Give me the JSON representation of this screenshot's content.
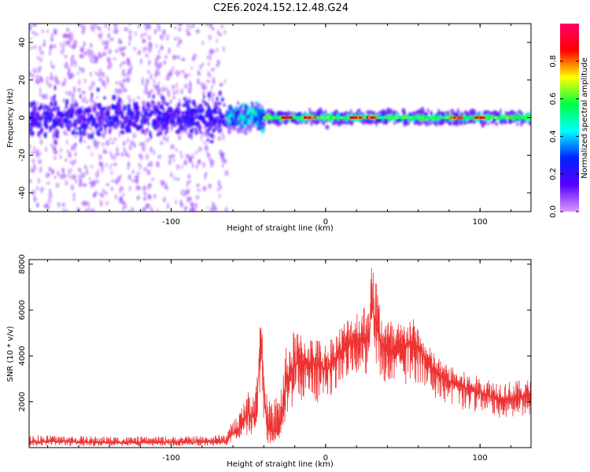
{
  "title": "C2E6.2024.152.12.48.G24",
  "colors": {
    "snr_line": "#ee3333",
    "frame": "#000000",
    "background": "#ffffff"
  },
  "colorbar": {
    "label": "Normalized spectral amplitude",
    "range": [
      0,
      1
    ],
    "ticks": [
      "0.0",
      "0.2",
      "0.4",
      "0.6",
      "0.8"
    ],
    "tick_values": [
      0.0,
      0.2,
      0.4,
      0.6,
      0.8
    ],
    "colormap": "gist_rainbow_r",
    "colormap_stops": [
      "#dd99ff",
      "#5500ff",
      "#0022ff",
      "#00ffff",
      "#00ff44",
      "#ffff00",
      "#ff0000",
      "#ff0066"
    ]
  },
  "chart_data": [
    {
      "type": "heatmap",
      "title": "C2E6.2024.152.12.48.G24",
      "xlabel": "Height of straight line (km)",
      "ylabel": "Frequency (Hz)",
      "xlim": [
        -192,
        133
      ],
      "ylim": [
        -50,
        50
      ],
      "x_ticks": [
        -100,
        0,
        100
      ],
      "x_tick_labels": [
        "-100",
        "0",
        "100"
      ],
      "y_ticks": [
        -40,
        -20,
        0,
        20,
        40
      ],
      "y_tick_labels": [
        "-40",
        "-20",
        "0",
        "20",
        "40"
      ],
      "grid": false,
      "regions": [
        {
          "x_range": [
            -192,
            -64
          ],
          "freq_spread_hz": 50,
          "core_band_hz": [
            -8,
            8
          ],
          "amplitude": "low (0.1–0.3)"
        },
        {
          "x_range": [
            -64,
            -40
          ],
          "freq_spread_hz": 8,
          "core_band_hz": [
            -4,
            4
          ],
          "amplitude": "medium (0.3–0.6)"
        },
        {
          "x_range": [
            -40,
            133
          ],
          "freq_spread_hz": 4,
          "core_band_hz": [
            -2,
            2
          ],
          "amplitude": "high (0.6–1.0) near 0 Hz"
        }
      ],
      "peak_locations_x": [
        -25,
        -10,
        20,
        30,
        85,
        100
      ]
    },
    {
      "type": "line",
      "xlabel": "Height of straight line (km)",
      "ylabel": "SNR (10 * v/v)",
      "xlim": [
        -192,
        133
      ],
      "ylim": [
        0,
        8200
      ],
      "x_ticks": [
        -100,
        0,
        100
      ],
      "x_tick_labels": [
        "-100",
        "0",
        "100"
      ],
      "y_ticks": [
        2000,
        4000,
        6000,
        8000
      ],
      "y_tick_labels": [
        "2000",
        "4000",
        "6000",
        "8000"
      ],
      "grid": false,
      "series": [
        {
          "color": "#ee3333",
          "x": [
            -192,
            -180,
            -160,
            -140,
            -120,
            -100,
            -80,
            -65,
            -55,
            -50,
            -45,
            -42,
            -38,
            -35,
            -30,
            -25,
            -20,
            -15,
            -10,
            -5,
            0,
            5,
            10,
            15,
            20,
            25,
            28,
            30,
            32,
            35,
            40,
            45,
            50,
            55,
            60,
            65,
            70,
            75,
            80,
            90,
            100,
            110,
            120,
            133
          ],
          "y": [
            250,
            260,
            240,
            230,
            220,
            240,
            250,
            280,
            900,
            1500,
            1200,
            5200,
            900,
            700,
            800,
            3000,
            3600,
            3800,
            3700,
            3600,
            3400,
            3800,
            4200,
            4600,
            4800,
            4600,
            5000,
            6200,
            5600,
            4600,
            4200,
            4000,
            4400,
            4600,
            4400,
            3800,
            3400,
            3100,
            2900,
            2600,
            2400,
            2200,
            2100,
            2300
          ],
          "upper": [
            600,
            550,
            520,
            500,
            480,
            500,
            520,
            600,
            1800,
            2500,
            3000,
            5800,
            2200,
            2000,
            2600,
            4600,
            5200,
            5000,
            4900,
            4800,
            4600,
            5000,
            5400,
            5800,
            6100,
            6400,
            7000,
            8100,
            8000,
            6500,
            5800,
            5500,
            5500,
            5800,
            5300,
            4600,
            4200,
            3800,
            3600,
            3300,
            3100,
            3000,
            2900,
            3000
          ],
          "lower": [
            80,
            90,
            70,
            60,
            60,
            70,
            70,
            90,
            300,
            600,
            400,
            1500,
            200,
            150,
            300,
            1200,
            1800,
            2000,
            2200,
            1900,
            2000,
            2400,
            2800,
            3200,
            3300,
            3000,
            3400,
            4000,
            3600,
            3000,
            2600,
            2500,
            2700,
            2900,
            2800,
            2600,
            2200,
            2000,
            1800,
            1600,
            1500,
            1300,
            1300,
            1400
          ]
        }
      ]
    }
  ]
}
